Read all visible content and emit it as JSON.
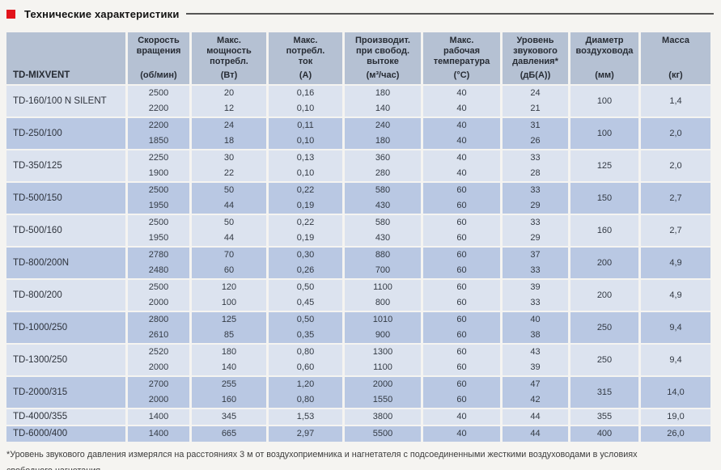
{
  "colors": {
    "accent_red": "#e2131b",
    "header_bg": "#b5c1d3",
    "row_dark": "#b9c8e3",
    "row_light": "#dce3ef",
    "page_bg": "#f5f4f1",
    "text": "#333a44"
  },
  "page": {
    "title": "Технические характеристики",
    "footnote": "*Уровень звукового давления измерялся на расстояниях 3 м от воздухоприемника и нагнетателя с подсоединенными жесткими воздуховодами в условиях\nсвободного нагнетания."
  },
  "table": {
    "brand_header": "TD-MIXVENT",
    "col_headers": [
      {
        "title": "Скорость\nвращения",
        "unit": "(об/мин)"
      },
      {
        "title": "Макс.\nмощность\nпотребл.",
        "unit": "(Вт)"
      },
      {
        "title": "Макс.\nпотребл.\nток",
        "unit": "(А)"
      },
      {
        "title": "Производит.\nпри свобод.\nвытоке",
        "unit": "(м³/час)"
      },
      {
        "title": "Макс.\nрабочая\nтемпература",
        "unit": "(°С)"
      },
      {
        "title": "Уровень\nзвукового\nдавления*",
        "unit": "(дБ(А))"
      },
      {
        "title": "Диаметр\nвоздуховода",
        "unit": "(мм)"
      },
      {
        "title": "Масса",
        "unit": "(кг)"
      }
    ],
    "groups": [
      {
        "name": "TD-160/100 N SILENT",
        "rows": [
          [
            "2500",
            "20",
            "0,16",
            "180",
            "40",
            "24"
          ],
          [
            "2200",
            "12",
            "0,10",
            "140",
            "40",
            "21"
          ]
        ],
        "diameter": "100",
        "mass": "1,4"
      },
      {
        "name": "TD-250/100",
        "rows": [
          [
            "2200",
            "24",
            "0,11",
            "240",
            "40",
            "31"
          ],
          [
            "1850",
            "18",
            "0,10",
            "180",
            "40",
            "26"
          ]
        ],
        "diameter": "100",
        "mass": "2,0"
      },
      {
        "name": "TD-350/125",
        "rows": [
          [
            "2250",
            "30",
            "0,13",
            "360",
            "40",
            "33"
          ],
          [
            "1900",
            "22",
            "0,10",
            "280",
            "40",
            "28"
          ]
        ],
        "diameter": "125",
        "mass": "2,0"
      },
      {
        "name": "TD-500/150",
        "rows": [
          [
            "2500",
            "50",
            "0,22",
            "580",
            "60",
            "33"
          ],
          [
            "1950",
            "44",
            "0,19",
            "430",
            "60",
            "29"
          ]
        ],
        "diameter": "150",
        "mass": "2,7"
      },
      {
        "name": "TD-500/160",
        "rows": [
          [
            "2500",
            "50",
            "0,22",
            "580",
            "60",
            "33"
          ],
          [
            "1950",
            "44",
            "0,19",
            "430",
            "60",
            "29"
          ]
        ],
        "diameter": "160",
        "mass": "2,7"
      },
      {
        "name": "TD-800/200N",
        "rows": [
          [
            "2780",
            "70",
            "0,30",
            "880",
            "60",
            "37"
          ],
          [
            "2480",
            "60",
            "0,26",
            "700",
            "60",
            "33"
          ]
        ],
        "diameter": "200",
        "mass": "4,9"
      },
      {
        "name": "TD-800/200",
        "rows": [
          [
            "2500",
            "120",
            "0,50",
            "1100",
            "60",
            "39"
          ],
          [
            "2000",
            "100",
            "0,45",
            "800",
            "60",
            "33"
          ]
        ],
        "diameter": "200",
        "mass": "4,9"
      },
      {
        "name": "TD-1000/250",
        "rows": [
          [
            "2800",
            "125",
            "0,50",
            "1010",
            "60",
            "40"
          ],
          [
            "2610",
            "85",
            "0,35",
            "900",
            "60",
            "38"
          ]
        ],
        "diameter": "250",
        "mass": "9,4"
      },
      {
        "name": "TD-1300/250",
        "rows": [
          [
            "2520",
            "180",
            "0,80",
            "1300",
            "60",
            "43"
          ],
          [
            "2000",
            "140",
            "0,60",
            "1100",
            "60",
            "39"
          ]
        ],
        "diameter": "250",
        "mass": "9,4"
      },
      {
        "name": "TD-2000/315",
        "rows": [
          [
            "2700",
            "255",
            "1,20",
            "2000",
            "60",
            "47"
          ],
          [
            "2000",
            "160",
            "0,80",
            "1550",
            "60",
            "42"
          ]
        ],
        "diameter": "315",
        "mass": "14,0"
      },
      {
        "name": "TD-4000/355",
        "rows": [
          [
            "1400",
            "345",
            "1,53",
            "3800",
            "40",
            "44"
          ]
        ],
        "diameter": "355",
        "mass": "19,0"
      },
      {
        "name": "TD-6000/400",
        "rows": [
          [
            "1400",
            "665",
            "2,97",
            "5500",
            "40",
            "44"
          ]
        ],
        "diameter": "400",
        "mass": "26,0"
      }
    ]
  }
}
